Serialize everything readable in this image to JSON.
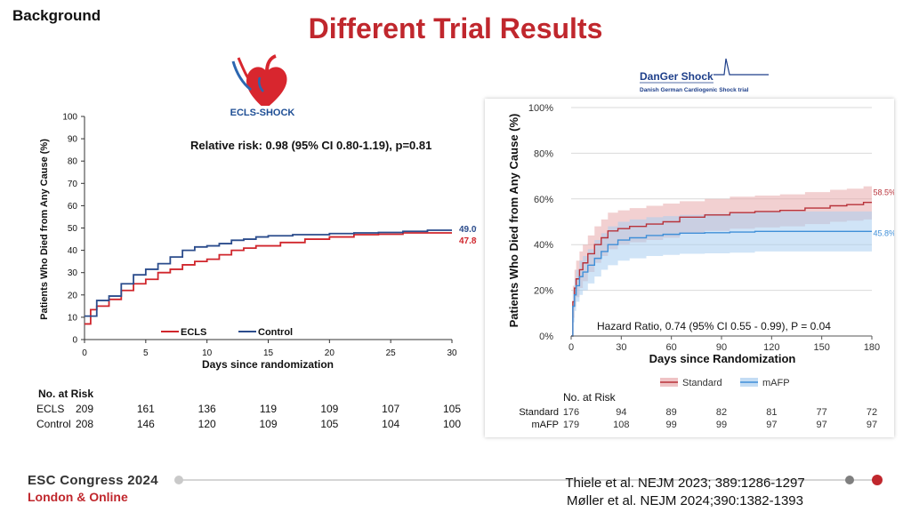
{
  "header": {
    "section": "Background",
    "title": "Different Trial Results"
  },
  "ecls": {
    "logo_text": "ECLS-SHOCK",
    "annotation": "Relative risk: 0.98 (95% CI 0.80-1.19), p=0.81",
    "chart_data": {
      "type": "line",
      "step": true,
      "ylabel": "Patients Who Died from Any Cause (%)",
      "xlabel": "Days since randomization",
      "xlim": [
        0,
        30
      ],
      "ylim": [
        0,
        100
      ],
      "xticks": [
        0,
        5,
        10,
        15,
        20,
        25,
        30
      ],
      "yticks": [
        0,
        10,
        20,
        30,
        40,
        50,
        60,
        70,
        80,
        90,
        100
      ],
      "series": [
        {
          "name": "ECLS",
          "color": "#d0262c",
          "end_label": "47.8%",
          "x": [
            0,
            0.5,
            1,
            2,
            3,
            4,
            5,
            6,
            7,
            8,
            9,
            10,
            11,
            12,
            13,
            14,
            16,
            18,
            20,
            22,
            24,
            26,
            30
          ],
          "y": [
            7,
            13.4,
            15,
            18,
            22,
            25,
            27,
            30,
            31.5,
            33.5,
            35,
            36,
            38,
            40,
            41,
            42,
            43.5,
            45,
            46,
            47,
            47.2,
            47.8,
            47.8
          ]
        },
        {
          "name": "Control",
          "color": "#2b4c8c",
          "end_label": "49.0%",
          "x": [
            0,
            1,
            2,
            3,
            4,
            5,
            6,
            7,
            8,
            9,
            10,
            11,
            12,
            13,
            14,
            15,
            17,
            20,
            22,
            24,
            26,
            28,
            30
          ],
          "y": [
            10.5,
            17.5,
            19.5,
            25,
            29,
            31.5,
            34,
            37,
            40,
            41.5,
            42,
            43,
            44.5,
            45,
            46,
            46.5,
            47,
            47.5,
            47.8,
            48,
            48.5,
            49,
            49
          ]
        }
      ]
    },
    "risk_table": {
      "title": "No. at Risk",
      "rows": [
        {
          "label": "ECLS",
          "values": [
            "209",
            "161",
            "136",
            "119",
            "109",
            "107",
            "105"
          ]
        },
        {
          "label": "Control",
          "values": [
            "208",
            "146",
            "120",
            "109",
            "105",
            "104",
            "100"
          ]
        }
      ]
    }
  },
  "danger": {
    "logo_title": "DanGer Shock",
    "logo_subtitle": "Danish German Cardiogenic Shock trial",
    "annotation": "Hazard Ratio, 0.74 (95% CI 0.55 - 0.99), P = 0.04",
    "chart_data": {
      "type": "line",
      "step": true,
      "ylabel": "Patients Who Died from Any Cause (%)",
      "xlabel": "Days since Randomization",
      "xlim": [
        0,
        180
      ],
      "ylim": [
        0,
        100
      ],
      "xticks": [
        0,
        30,
        60,
        90,
        120,
        150,
        180
      ],
      "yticks": [
        0,
        20,
        40,
        60,
        80,
        100
      ],
      "ytick_labels": [
        "0%",
        "20%",
        "40%",
        "60%",
        "80%",
        "100%"
      ],
      "series": [
        {
          "name": "Standard",
          "color": "#b8323a",
          "band_color": "#e8a9ac",
          "end_label": "58.5%",
          "x": [
            0,
            1,
            2,
            3,
            5,
            7,
            10,
            14,
            18,
            22,
            28,
            35,
            45,
            55,
            65,
            80,
            95,
            110,
            125,
            140,
            155,
            165,
            175,
            180
          ],
          "y": [
            0,
            15,
            21,
            25,
            29,
            32,
            36,
            40,
            43,
            46,
            47,
            48,
            49,
            50,
            52,
            53,
            54,
            54.5,
            55,
            56,
            57,
            57.5,
            58.5,
            58.5
          ],
          "lower": [
            0,
            8,
            13,
            17,
            21,
            24,
            28,
            32,
            35,
            38,
            40,
            41,
            42,
            43,
            45,
            46,
            47,
            47.5,
            48,
            49,
            50,
            50.5,
            51,
            51
          ],
          "upper": [
            0,
            22,
            29,
            33,
            37,
            40,
            44,
            48,
            51,
            54,
            55,
            56,
            57,
            58,
            59,
            60,
            61,
            61.5,
            62,
            63,
            64,
            64.5,
            65.5,
            65.5
          ]
        },
        {
          "name": "mAFP",
          "color": "#3f8fd8",
          "band_color": "#a9cdf0",
          "end_label": "45.8%",
          "x": [
            0,
            1,
            2,
            3,
            5,
            7,
            10,
            14,
            18,
            22,
            28,
            35,
            45,
            55,
            65,
            80,
            95,
            110,
            125,
            140,
            155,
            165,
            175,
            180
          ],
          "y": [
            0,
            13,
            18,
            22,
            26,
            28,
            31,
            34,
            37,
            40,
            42,
            43,
            44,
            44.5,
            45,
            45.2,
            45.5,
            45.8,
            45.8,
            45.8,
            45.8,
            45.8,
            45.8,
            45.8
          ],
          "lower": [
            0,
            6,
            11,
            15,
            18,
            20,
            23,
            26,
            29,
            31,
            33,
            34,
            35,
            35.5,
            36,
            36.2,
            36.5,
            37,
            37,
            37,
            37,
            37,
            37,
            37
          ],
          "upper": [
            0,
            20,
            25,
            29,
            33,
            35,
            38,
            42,
            45,
            48,
            50,
            51,
            52,
            52.5,
            53,
            53.5,
            54,
            54.5,
            54.5,
            54.5,
            54.5,
            54.5,
            54.5,
            54.5
          ]
        }
      ]
    },
    "risk_table": {
      "title": "No. at Risk",
      "rows": [
        {
          "label": "Standard",
          "values": [
            "176",
            "94",
            "89",
            "82",
            "81",
            "77",
            "72"
          ]
        },
        {
          "label": "mAFP",
          "values": [
            "179",
            "108",
            "99",
            "99",
            "97",
            "97",
            "97"
          ]
        }
      ]
    }
  },
  "footer": {
    "conference": "ESC Congress 2024",
    "location": "London & Online",
    "citations": [
      "Thiele et al. NEJM 2023; 389:1286-1297",
      "Møller et al. NEJM 2024;390:1382-1393"
    ],
    "colors": {
      "line": "#d6d6d6",
      "dot_gray": "#7f7f7f",
      "dot_red": "#c0272d"
    }
  }
}
